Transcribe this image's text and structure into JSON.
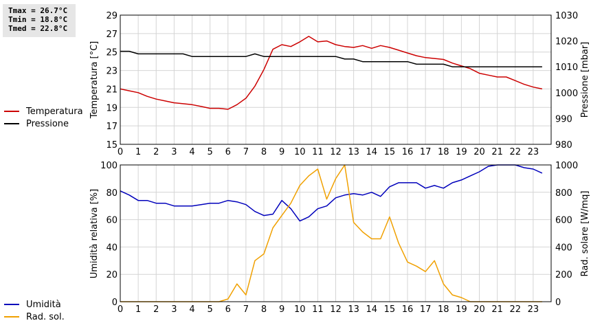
{
  "stats": {
    "tmax": "Tmax = 26.7°C",
    "tmin": "Tmin = 18.8°C",
    "tmed": "Tmed = 22.8°C"
  },
  "legend_top": [
    {
      "label": "Temperatura",
      "color": "#cc0000"
    },
    {
      "label": "Pressione",
      "color": "#000000"
    }
  ],
  "legend_bottom": [
    {
      "label": "Umidità",
      "color": "#0000bb"
    },
    {
      "label": "Rad. sol.",
      "color": "#f0a000"
    }
  ],
  "chart_data": [
    {
      "type": "line",
      "xlabel": "",
      "ylabel": "Temperatura [°C]",
      "ylabel_right": "Pressione [mbar]",
      "xlim": [
        0,
        24
      ],
      "xticks": [
        "0",
        "1",
        "2",
        "3",
        "4",
        "5",
        "6",
        "7",
        "8",
        "9",
        "10",
        "11",
        "12",
        "13",
        "14",
        "15",
        "16",
        "17",
        "18",
        "19",
        "20",
        "21",
        "22",
        "23"
      ],
      "ylim": [
        15,
        29
      ],
      "yticks": [
        "15",
        "17",
        "19",
        "21",
        "23",
        "25",
        "27",
        "29"
      ],
      "ylim_right": [
        980,
        1030
      ],
      "yticks_right": [
        "980",
        "990",
        "1000",
        "1010",
        "1020",
        "1030"
      ],
      "grid": true,
      "legend": "left",
      "series": [
        {
          "name": "Temperatura",
          "axis": "left",
          "color": "#cc0000",
          "x": [
            0,
            0.5,
            1,
            1.5,
            2,
            2.5,
            3,
            3.5,
            4,
            4.5,
            5,
            5.5,
            6,
            6.5,
            7,
            7.5,
            8,
            8.5,
            9,
            9.5,
            10,
            10.5,
            11,
            11.5,
            12,
            12.5,
            13,
            13.5,
            14,
            14.5,
            15,
            15.5,
            16,
            16.5,
            17,
            17.5,
            18,
            18.5,
            19,
            19.5,
            20,
            20.5,
            21,
            21.5,
            22,
            22.5,
            23,
            23.5
          ],
          "y": [
            21.0,
            20.8,
            20.6,
            20.2,
            19.9,
            19.7,
            19.5,
            19.4,
            19.3,
            19.1,
            18.9,
            18.9,
            18.8,
            19.3,
            20.0,
            21.3,
            23.1,
            25.3,
            25.8,
            25.6,
            26.1,
            26.7,
            26.1,
            26.2,
            25.8,
            25.6,
            25.5,
            25.7,
            25.4,
            25.7,
            25.5,
            25.2,
            24.9,
            24.6,
            24.4,
            24.3,
            24.2,
            23.8,
            23.5,
            23.2,
            22.7,
            22.5,
            22.3,
            22.3,
            21.9,
            21.5,
            21.2,
            21.0
          ]
        },
        {
          "name": "Pressione",
          "axis": "right",
          "color": "#000000",
          "x": [
            0,
            0.5,
            1,
            1.5,
            2,
            2.5,
            3,
            3.5,
            4,
            4.5,
            5,
            5.5,
            6,
            6.5,
            7,
            7.5,
            8,
            8.5,
            9,
            9.5,
            10,
            10.5,
            11,
            11.5,
            12,
            12.5,
            13,
            13.5,
            14,
            14.5,
            15,
            15.5,
            16,
            16.5,
            17,
            17.5,
            18,
            18.5,
            19,
            19.5,
            20,
            20.5,
            21,
            21.5,
            22,
            22.5,
            23,
            23.5
          ],
          "y": [
            1016,
            1016,
            1015,
            1015,
            1015,
            1015,
            1015,
            1015,
            1014,
            1014,
            1014,
            1014,
            1014,
            1014,
            1014,
            1015,
            1014,
            1014,
            1014,
            1014,
            1014,
            1014,
            1014,
            1014,
            1014,
            1013,
            1013,
            1012,
            1012,
            1012,
            1012,
            1012,
            1012,
            1011,
            1011,
            1011,
            1011,
            1010,
            1010,
            1010,
            1010,
            1010,
            1010,
            1010,
            1010,
            1010,
            1010,
            1010
          ]
        }
      ]
    },
    {
      "type": "line",
      "xlabel": "",
      "ylabel": "Umidità relativa [%]",
      "ylabel_right": "Rad. solare [W/mq]",
      "xlim": [
        0,
        24
      ],
      "xticks": [
        "0",
        "1",
        "2",
        "3",
        "4",
        "5",
        "6",
        "7",
        "8",
        "9",
        "10",
        "11",
        "12",
        "13",
        "14",
        "15",
        "16",
        "17",
        "18",
        "19",
        "20",
        "21",
        "22",
        "23"
      ],
      "ylim": [
        0,
        100
      ],
      "yticks": [
        "0",
        "20",
        "40",
        "60",
        "80",
        "100"
      ],
      "ylim_right": [
        0,
        1000
      ],
      "yticks_right": [
        "0",
        "200",
        "400",
        "600",
        "800",
        "1000"
      ],
      "grid": true,
      "legend": "left",
      "series": [
        {
          "name": "Umidità",
          "axis": "left",
          "color": "#0000bb",
          "x": [
            0,
            0.5,
            1,
            1.5,
            2,
            2.5,
            3,
            3.5,
            4,
            4.5,
            5,
            5.5,
            6,
            6.5,
            7,
            7.5,
            8,
            8.5,
            9,
            9.5,
            10,
            10.5,
            11,
            11.5,
            12,
            12.5,
            13,
            13.5,
            14,
            14.5,
            15,
            15.5,
            16,
            16.5,
            17,
            17.5,
            18,
            18.5,
            19,
            19.5,
            20,
            20.5,
            21,
            21.5,
            22,
            22.5,
            23,
            23.5
          ],
          "y": [
            81,
            78,
            74,
            74,
            72,
            72,
            70,
            70,
            70,
            71,
            72,
            72,
            74,
            73,
            71,
            66,
            63,
            64,
            74,
            68,
            59,
            62,
            68,
            70,
            76,
            78,
            79,
            78,
            80,
            77,
            84,
            87,
            87,
            87,
            83,
            85,
            83,
            87,
            89,
            92,
            95,
            99,
            100,
            100,
            100,
            98,
            97,
            94
          ]
        },
        {
          "name": "Rad. sol.",
          "axis": "right",
          "color": "#f0a000",
          "x": [
            0,
            0.5,
            1,
            1.5,
            2,
            2.5,
            3,
            3.5,
            4,
            4.5,
            5,
            5.5,
            6,
            6.5,
            7,
            7.5,
            8,
            8.5,
            9,
            9.5,
            10,
            10.5,
            11,
            11.5,
            12,
            12.5,
            13,
            13.5,
            14,
            14.5,
            15,
            15.5,
            16,
            16.5,
            17,
            17.5,
            18,
            18.5,
            19,
            19.5,
            20,
            20.5,
            21,
            21.5,
            22,
            22.5,
            23,
            23.5
          ],
          "y": [
            0,
            0,
            0,
            0,
            0,
            0,
            0,
            0,
            0,
            0,
            0,
            0,
            20,
            130,
            50,
            300,
            350,
            540,
            630,
            720,
            850,
            920,
            970,
            750,
            900,
            1050,
            580,
            510,
            460,
            460,
            620,
            430,
            290,
            260,
            220,
            300,
            130,
            50,
            30,
            0,
            0,
            0,
            0,
            0,
            0,
            0,
            0,
            0
          ]
        }
      ]
    }
  ]
}
